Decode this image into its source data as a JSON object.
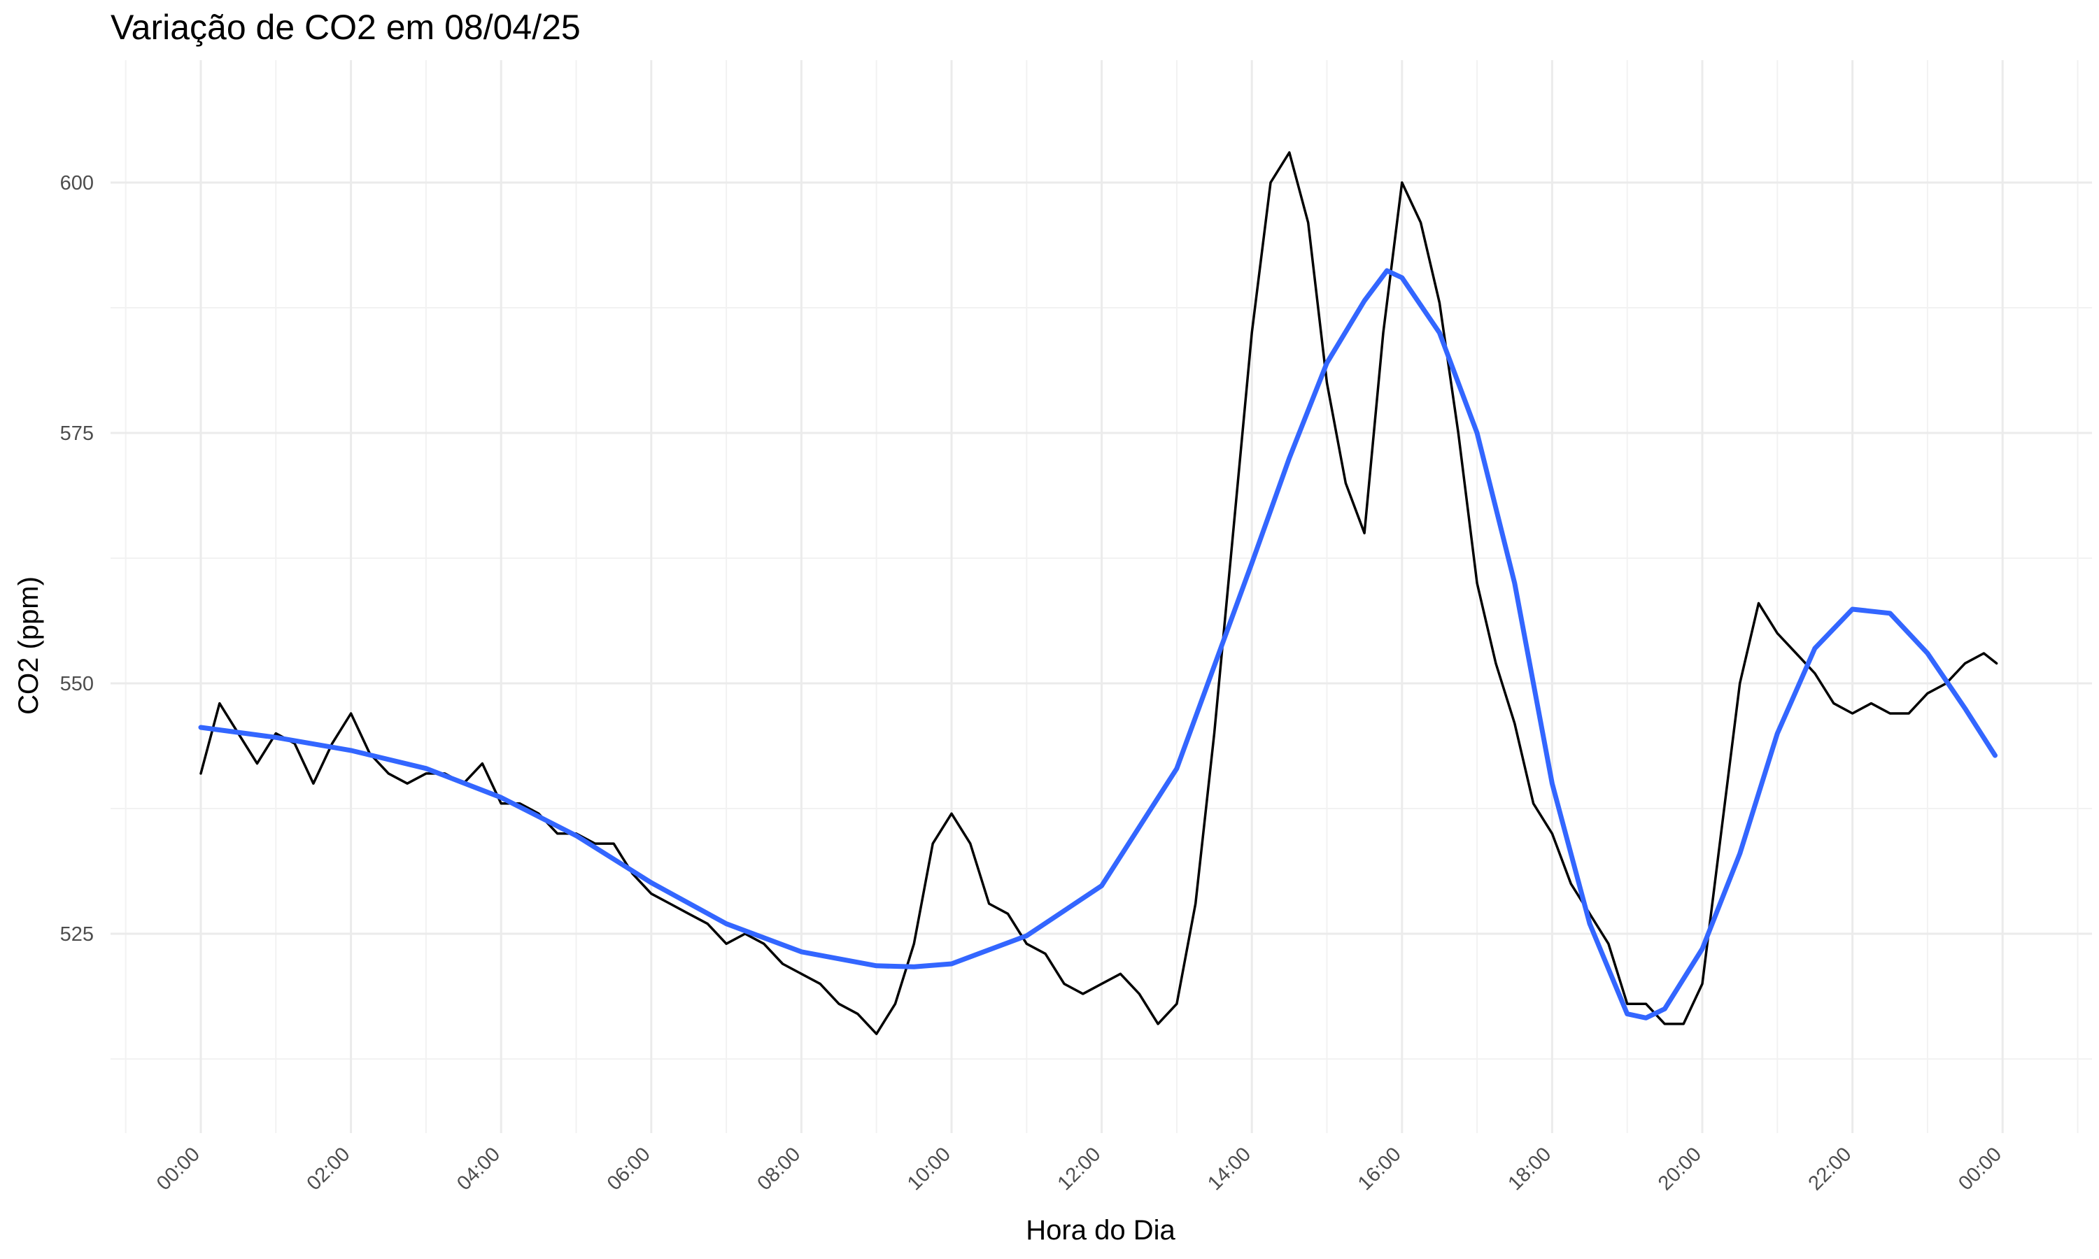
{
  "chart_data": {
    "type": "line",
    "title": "Variação de CO2 em 08/04/25",
    "xlabel": "Hora do Dia",
    "ylabel": "CO2 (ppm)",
    "xlim_hours": [
      -1,
      25
    ],
    "ylim": [
      506,
      614
    ],
    "x_ticks": [
      "00:00",
      "02:00",
      "04:00",
      "06:00",
      "08:00",
      "10:00",
      "12:00",
      "14:00",
      "16:00",
      "18:00",
      "20:00",
      "22:00",
      "00:00"
    ],
    "x_tick_hours": [
      0,
      2,
      4,
      6,
      8,
      10,
      12,
      14,
      16,
      18,
      20,
      22,
      24
    ],
    "y_ticks": [
      525,
      550,
      575,
      600
    ],
    "grid": true,
    "legend": "none",
    "series": [
      {
        "color": "#000000",
        "kind": "raw",
        "x_hours": [
          0.0,
          0.25,
          0.5,
          0.75,
          1.0,
          1.25,
          1.5,
          1.75,
          2.0,
          2.25,
          2.5,
          2.75,
          3.0,
          3.25,
          3.5,
          3.75,
          4.0,
          4.25,
          4.5,
          4.75,
          5.0,
          5.25,
          5.5,
          5.75,
          6.0,
          6.25,
          6.5,
          6.75,
          7.0,
          7.25,
          7.5,
          7.75,
          8.0,
          8.25,
          8.5,
          8.75,
          9.0,
          9.25,
          9.5,
          9.75,
          10.0,
          10.25,
          10.5,
          10.75,
          11.0,
          11.25,
          11.5,
          11.75,
          12.0,
          12.25,
          12.5,
          12.75,
          13.0,
          13.25,
          13.5,
          13.75,
          14.0,
          14.25,
          14.5,
          14.75,
          15.0,
          15.25,
          15.5,
          15.75,
          16.0,
          16.25,
          16.5,
          16.75,
          17.0,
          17.25,
          17.5,
          17.75,
          18.0,
          18.25,
          18.5,
          18.75,
          19.0,
          19.25,
          19.5,
          19.75,
          20.0,
          20.25,
          20.5,
          20.75,
          21.0,
          21.25,
          21.5,
          21.75,
          22.0,
          22.25,
          22.5,
          22.75,
          23.0,
          23.25,
          23.5,
          23.75,
          23.92
        ],
        "values": [
          541,
          548,
          545,
          542,
          545,
          544,
          540,
          544,
          547,
          543,
          541,
          540,
          541,
          541,
          540,
          542,
          538,
          538,
          537,
          535,
          535,
          534,
          534,
          531,
          529,
          528,
          527,
          526,
          524,
          525,
          524,
          522,
          521,
          520,
          518,
          517,
          515,
          518,
          524,
          534,
          537,
          534,
          528,
          527,
          524,
          523,
          520,
          519,
          520,
          521,
          519,
          516,
          518,
          528,
          545,
          565,
          585,
          600,
          603,
          596,
          580,
          570,
          565,
          585,
          600,
          596,
          588,
          575,
          560,
          552,
          546,
          538,
          535,
          530,
          527,
          524,
          518,
          518,
          516,
          516,
          520,
          535,
          550,
          558,
          555,
          553,
          551,
          548,
          547,
          548,
          547,
          547,
          549,
          550,
          552,
          553,
          552
        ]
      },
      {
        "color": "#3366ff",
        "kind": "smooth",
        "x_hours": [
          0.0,
          1.0,
          2.0,
          3.0,
          4.0,
          5.0,
          6.0,
          7.0,
          8.0,
          9.0,
          9.5,
          10.0,
          11.0,
          12.0,
          13.0,
          14.0,
          14.5,
          15.0,
          15.5,
          15.8,
          16.0,
          16.5,
          17.0,
          17.5,
          18.0,
          18.5,
          19.0,
          19.25,
          19.5,
          20.0,
          20.5,
          21.0,
          21.5,
          22.0,
          22.5,
          23.0,
          23.5,
          23.9
        ],
        "values": [
          545.6,
          544.6,
          543.3,
          541.5,
          538.6,
          534.8,
          530.1,
          526.0,
          523.2,
          521.8,
          521.7,
          522.0,
          524.8,
          529.8,
          541.5,
          562.0,
          572.5,
          582.0,
          588.2,
          591.2,
          590.5,
          585.0,
          575.0,
          560.0,
          540.0,
          526.0,
          517.0,
          516.6,
          517.5,
          523.5,
          533.0,
          545.0,
          553.5,
          557.4,
          557.0,
          553.0,
          547.5,
          542.8
        ]
      }
    ]
  }
}
